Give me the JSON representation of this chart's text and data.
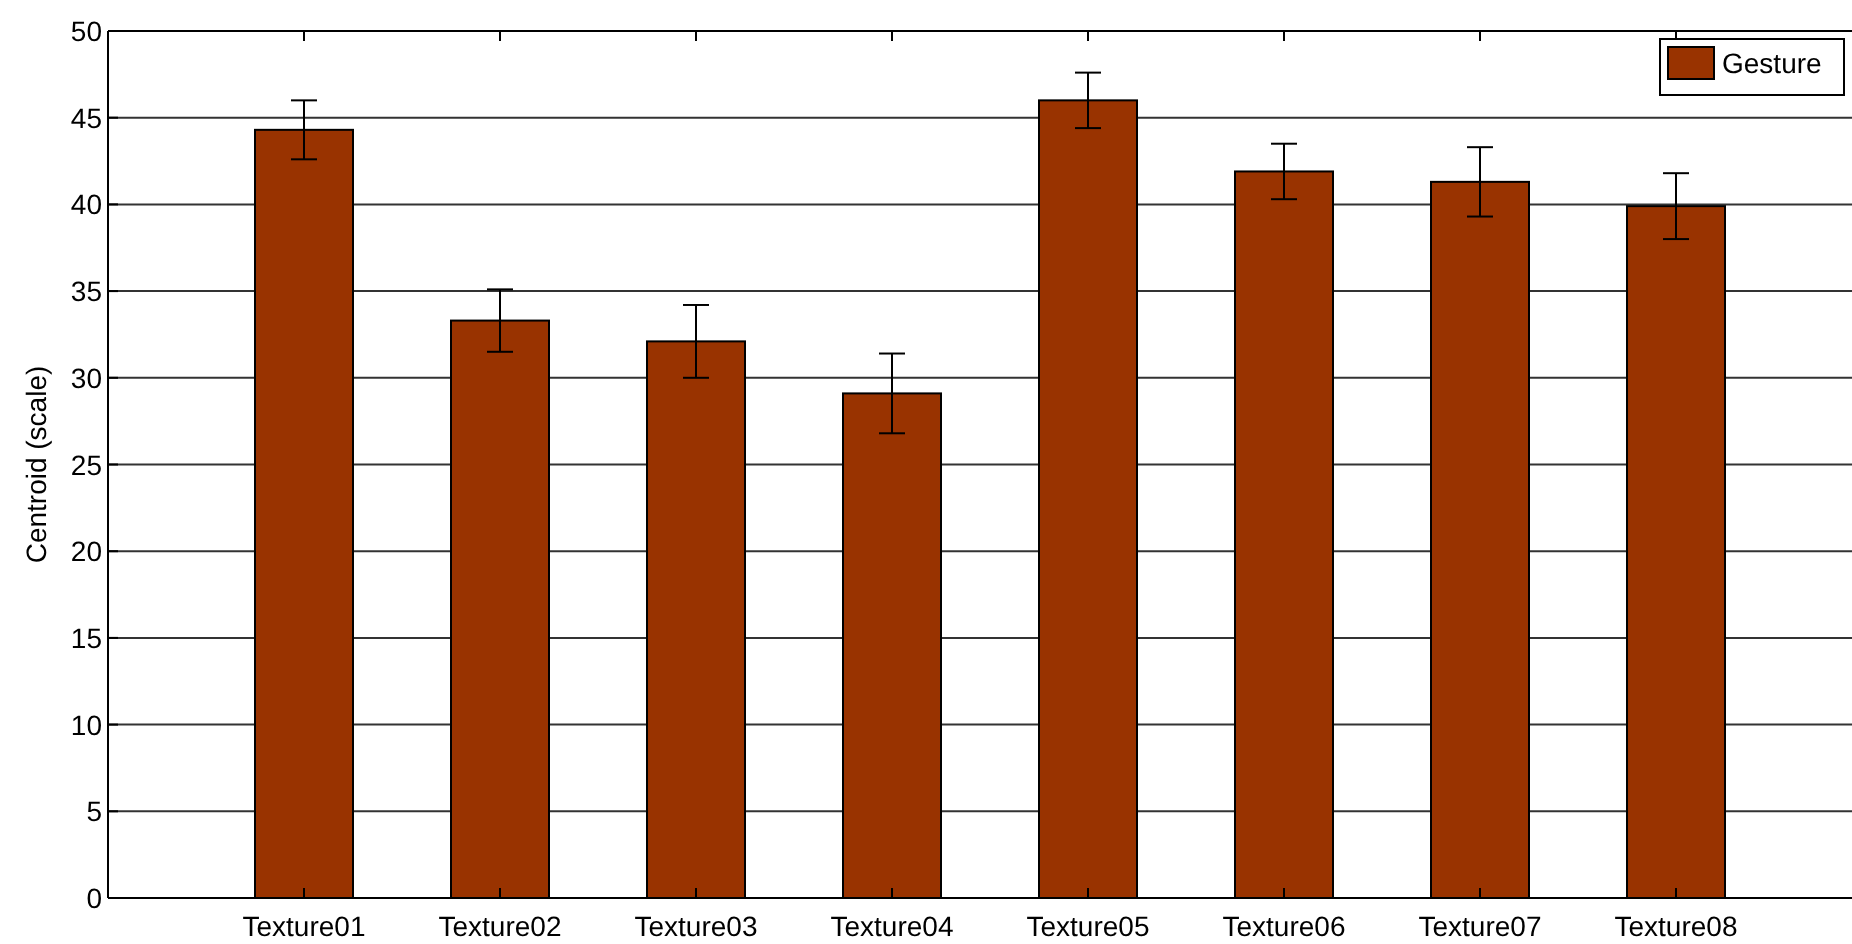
{
  "chart_data": {
    "type": "bar",
    "ylabel": "Centroid (scale)",
    "categories": [
      "Texture01",
      "Texture02",
      "Texture03",
      "Texture04",
      "Texture05",
      "Texture06",
      "Texture07",
      "Texture08"
    ],
    "series": [
      {
        "name": "Gesture",
        "color": "#993300",
        "values": [
          44.3,
          33.3,
          32.1,
          29.1,
          46.0,
          41.9,
          41.3,
          39.9
        ],
        "errors": [
          1.7,
          1.8,
          2.1,
          2.3,
          1.6,
          1.6,
          2.0,
          1.9
        ]
      }
    ],
    "ylim": [
      0,
      50
    ],
    "yticks": [
      0,
      5,
      10,
      15,
      20,
      25,
      30,
      35,
      40,
      45,
      50
    ],
    "grid": "y",
    "legend": "top right"
  }
}
